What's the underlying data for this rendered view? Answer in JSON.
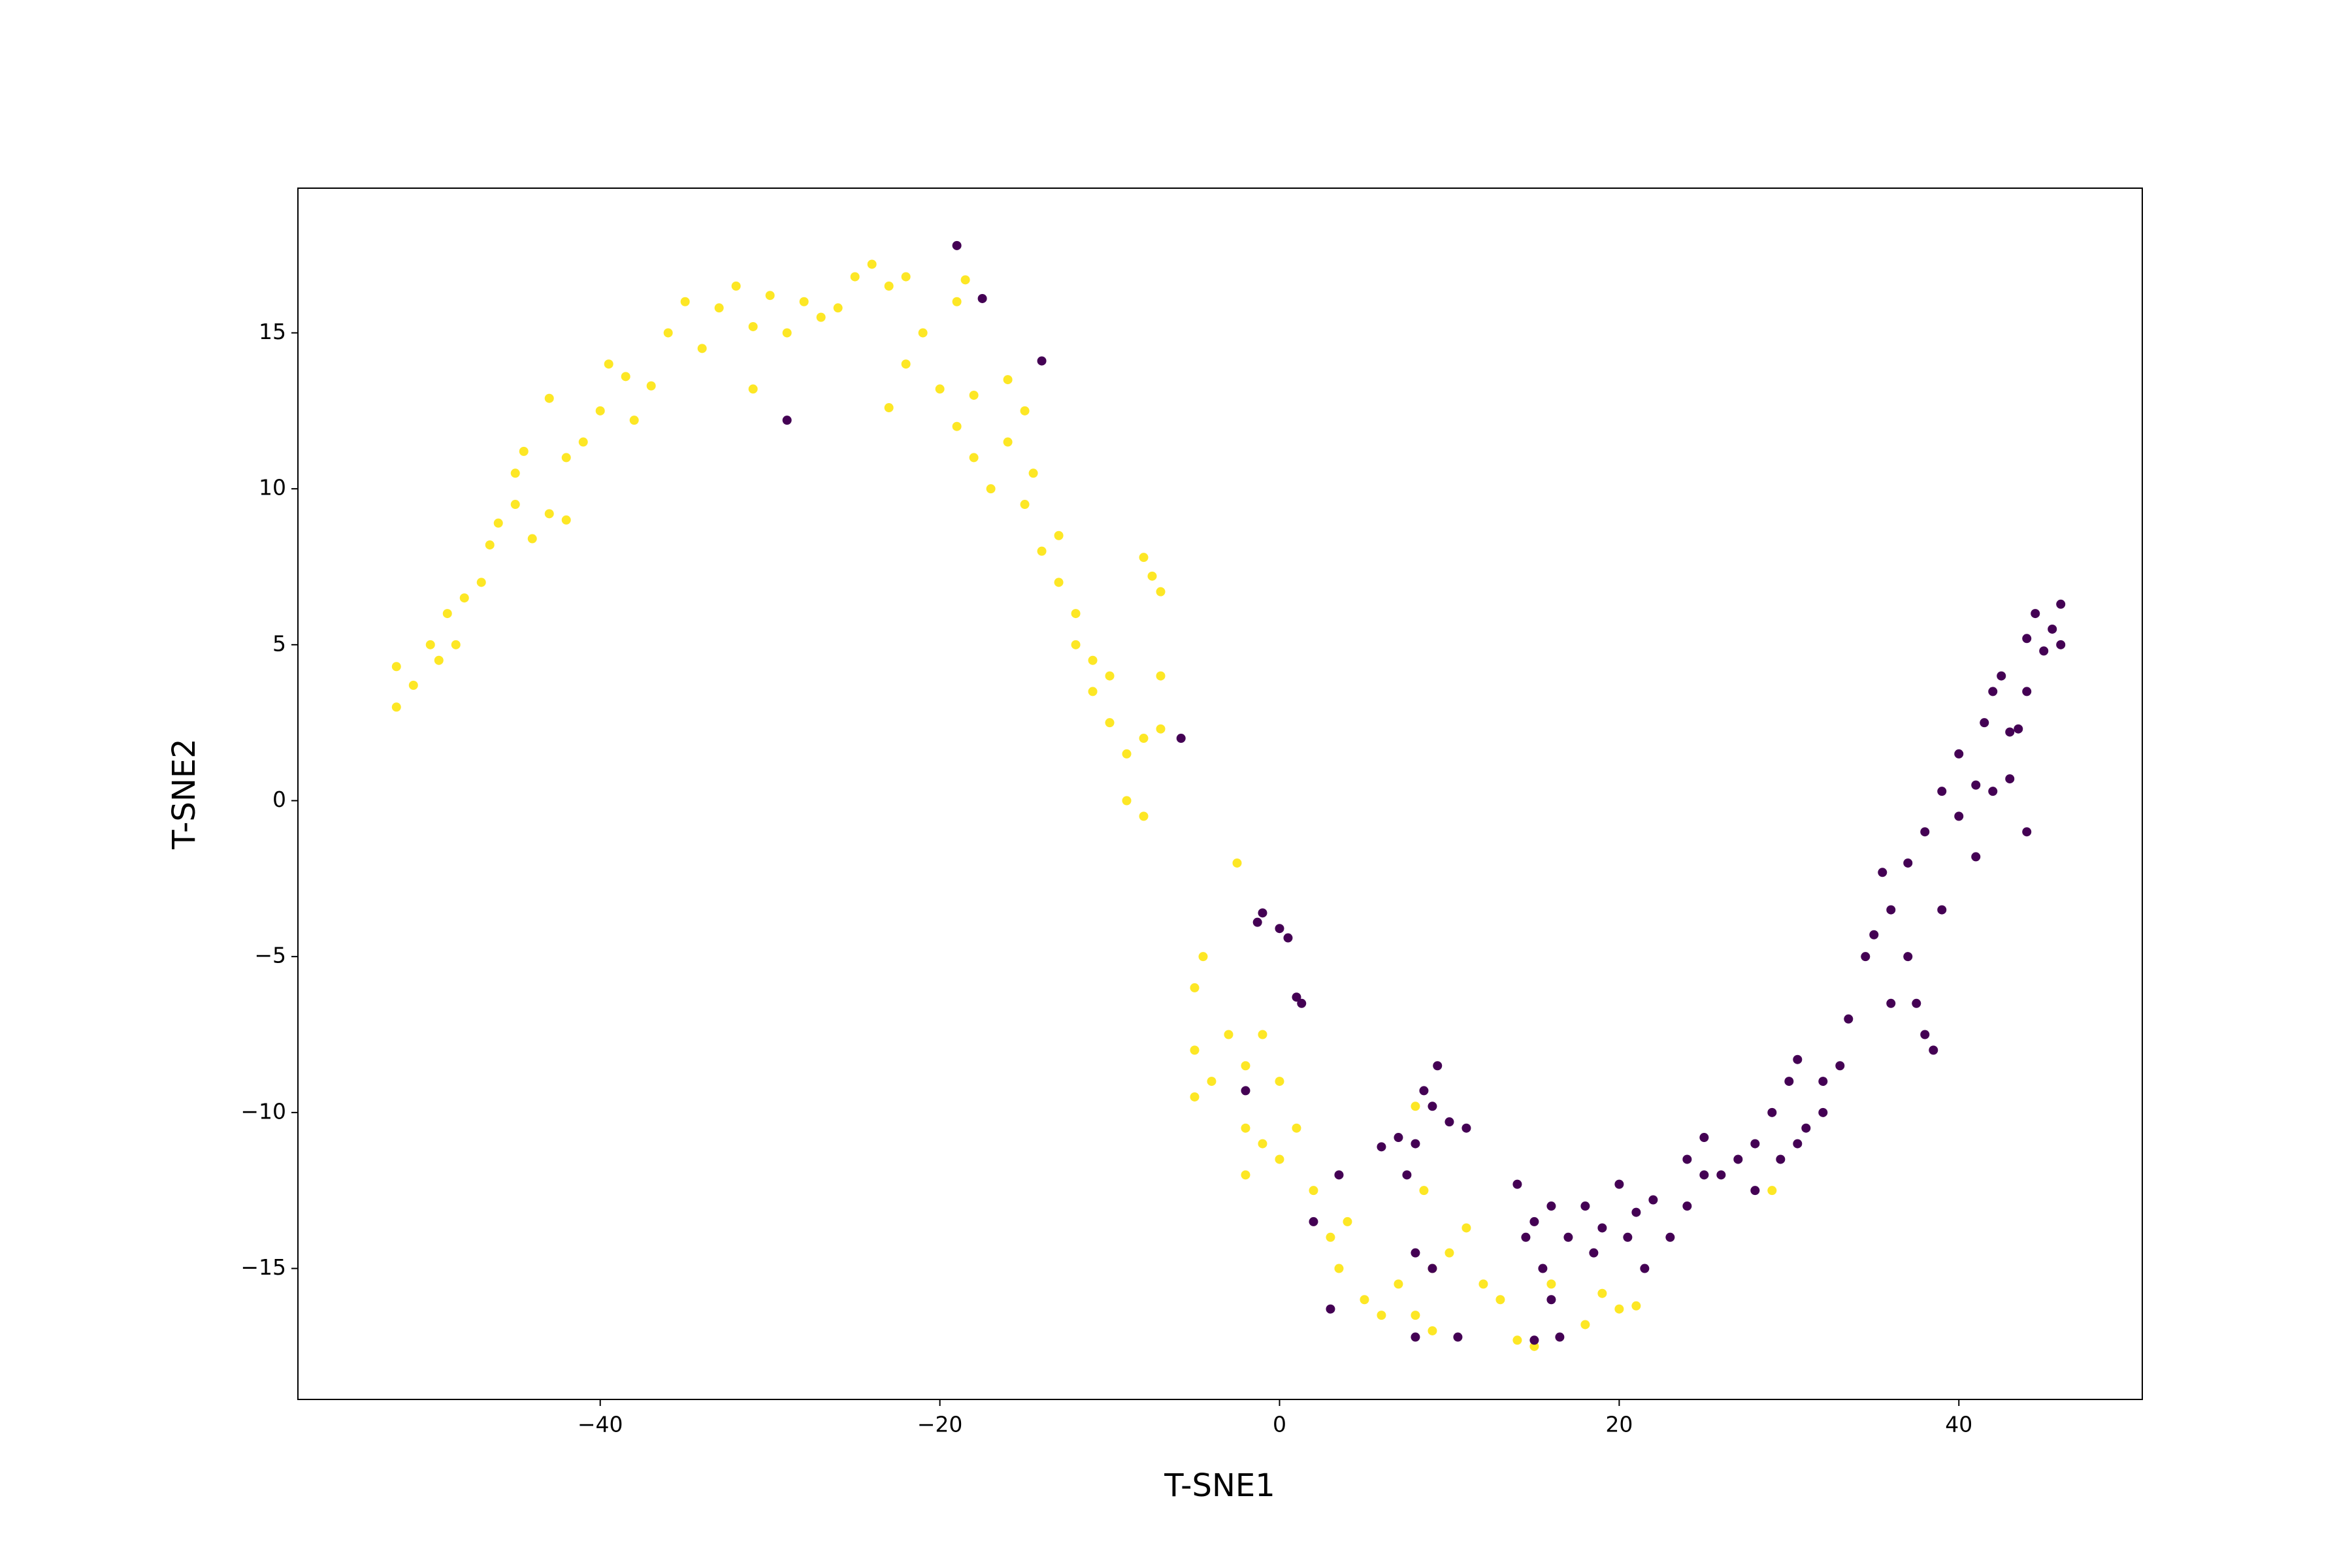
{
  "chart_data": {
    "type": "scatter",
    "xlabel": "T-SNE1",
    "ylabel": "T-SNE2",
    "xlim": [
      -57.8,
      50.8
    ],
    "ylim": [
      -19.2,
      19.64
    ],
    "xticks": [
      {
        "value": -40,
        "label": "−40"
      },
      {
        "value": -20,
        "label": "−20"
      },
      0,
      20,
      40
    ],
    "yticks": [
      {
        "value": -15,
        "label": "−15"
      },
      {
        "value": -10,
        "label": "−10"
      },
      {
        "value": -5,
        "label": "−5"
      },
      0,
      5,
      10,
      15
    ],
    "series": [
      {
        "color": "#fde725",
        "x": [
          -52,
          -52,
          -51,
          -50,
          -49.5,
          -49,
          -48,
          -48.5,
          -47,
          -46.5,
          -46,
          -45,
          -45,
          -44.5,
          -44,
          -43,
          -43,
          -42,
          -42,
          -41,
          -40,
          -39.5,
          -38.5,
          -38,
          -37,
          -36,
          -35,
          -34,
          -33,
          -32,
          -31,
          -31,
          -30,
          -29,
          -28,
          -27,
          -26,
          -25,
          -24,
          -23,
          -22,
          -23,
          -22,
          -21,
          -20,
          -19,
          -18.5,
          -19,
          -18,
          -17,
          -18,
          -16,
          -16,
          -15,
          -14.5,
          -15,
          -14,
          -13,
          -13,
          -12,
          -12,
          -11,
          -11,
          -10,
          -10,
          -9,
          -9,
          -8,
          -8,
          -7,
          -7,
          -8,
          -7.5,
          -7,
          -2.5,
          -5,
          -4.5,
          -5,
          -4,
          -5,
          -3,
          -2,
          -1,
          -1,
          -2,
          -2,
          0,
          0,
          1,
          2,
          3,
          4,
          3.5,
          5,
          6,
          7,
          8,
          9,
          9,
          10,
          11,
          12,
          13,
          14,
          15,
          16,
          18,
          19,
          20,
          21,
          8,
          8.5,
          29
        ],
        "values": [
          3,
          4.3,
          3.7,
          5,
          4.5,
          6,
          6.5,
          5,
          7,
          8.2,
          8.9,
          9.5,
          10.5,
          11.2,
          8.4,
          9.2,
          12.9,
          9,
          11,
          11.5,
          12.5,
          14,
          13.6,
          12.2,
          13.3,
          15,
          16,
          14.5,
          15.8,
          16.5,
          13.2,
          15.2,
          16.2,
          15,
          16,
          15.5,
          15.8,
          16.8,
          17.2,
          16.5,
          16.8,
          12.6,
          14,
          15,
          13.2,
          16,
          16.7,
          12,
          11,
          10,
          13,
          11.5,
          13.5,
          12.5,
          10.5,
          9.5,
          8,
          7,
          8.5,
          6,
          5,
          4.5,
          3.5,
          4,
          2.5,
          1.5,
          0,
          -0.5,
          2,
          4,
          2.3,
          7.8,
          7.2,
          6.7,
          -2,
          -6,
          -5,
          -8,
          -9,
          -9.5,
          -7.5,
          -8.5,
          -7.5,
          -11,
          -10.5,
          -12,
          -9,
          -11.5,
          -10.5,
          -12.5,
          -14,
          -13.5,
          -15,
          -16,
          -16.5,
          -15.5,
          -16.5,
          -15,
          -17,
          -14.5,
          -13.7,
          -15.5,
          -16,
          -17.3,
          -17.5,
          -15.5,
          -16.8,
          -15.8,
          -16.3,
          -16.2,
          -9.8,
          -12.5,
          -12.5
        ]
      },
      {
        "color": "#440154",
        "x": [
          -19,
          -17.5,
          -14,
          -29,
          -5.8,
          -1,
          -1.3,
          0,
          0.5,
          1,
          1.3,
          -2,
          2,
          3.5,
          3,
          6,
          7,
          8,
          8.5,
          9,
          9.3,
          10,
          11,
          7.5,
          8,
          8,
          9,
          10.5,
          14.5,
          15,
          16,
          15.5,
          16,
          16.5,
          15,
          14,
          17,
          18,
          18.5,
          19,
          20,
          20.5,
          21,
          22,
          21.5,
          23,
          24,
          25,
          24,
          25,
          26,
          27,
          28,
          28,
          29,
          29.5,
          30,
          30.5,
          31,
          32,
          32,
          33,
          33.5,
          34.5,
          35,
          35.5,
          36,
          36,
          37,
          37,
          37.5,
          38,
          38,
          38.5,
          39,
          39,
          40,
          40,
          41,
          41,
          41.5,
          42,
          42,
          42.5,
          43,
          43,
          44,
          44,
          44.5,
          45,
          45.5,
          46,
          46,
          43.5,
          44,
          30.5
        ],
        "values": [
          17.8,
          16.1,
          14.1,
          12.2,
          2,
          -3.6,
          -3.9,
          -4.1,
          -4.4,
          -6.3,
          -6.5,
          -9.3,
          -13.5,
          -12,
          -16.3,
          -11.1,
          -10.8,
          -11,
          -9.3,
          -9.8,
          -8.5,
          -10.3,
          -10.5,
          -12,
          -14.5,
          -17.2,
          -15,
          -17.2,
          -14,
          -13.5,
          -13,
          -15,
          -16,
          -17.2,
          -17.3,
          -12.3,
          -14,
          -13,
          -14.5,
          -13.7,
          -12.3,
          -14,
          -13.2,
          -12.8,
          -15,
          -14,
          -13,
          -12,
          -11.5,
          -10.8,
          -12,
          -11.5,
          -12.5,
          -11,
          -10,
          -11.5,
          -9,
          -8.3,
          -10.5,
          -10,
          -9,
          -8.5,
          -7,
          -5,
          -4.3,
          -2.3,
          -3.5,
          -6.5,
          -2,
          -5,
          -6.5,
          -7.5,
          -1,
          -8,
          -3.5,
          0.3,
          -0.5,
          1.5,
          -1.8,
          0.5,
          2.5,
          0.3,
          3.5,
          4,
          0.7,
          2.2,
          3.5,
          5.2,
          6,
          4.8,
          5.5,
          6.3,
          5,
          2.3,
          -1,
          -11
        ]
      }
    ]
  }
}
